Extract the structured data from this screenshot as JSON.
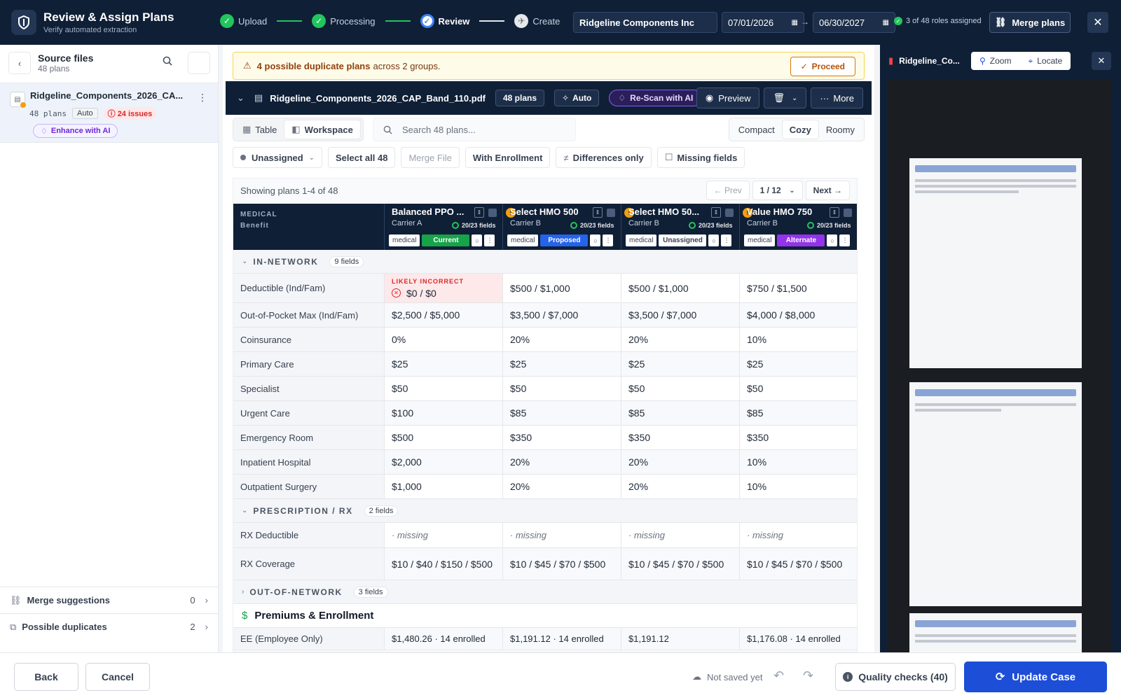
{
  "header": {
    "title": "Review & Assign Plans",
    "subtitle": "Verify automated extraction",
    "steps": [
      {
        "label": "Upload",
        "state": "done"
      },
      {
        "label": "Processing",
        "state": "done"
      },
      {
        "label": "Review",
        "state": "active"
      },
      {
        "label": "Create",
        "state": "todo"
      }
    ],
    "company": "Ridgeline Components Inc",
    "start_date": "07/01/2026",
    "end_date": "06/30/2027",
    "roles_status": "3 of 48 roles assigned",
    "merge_label": "Merge plans"
  },
  "sidebar": {
    "title": "Source files",
    "subtitle": "48 plans",
    "file": {
      "name": "Ridgeline_Components_2026_CA...",
      "plans": "48 plans",
      "mode": "Auto",
      "issues": "24 issues",
      "enhance": "Enhance with AI"
    },
    "merge_suggestions": {
      "label": "Merge suggestions",
      "count": "0"
    },
    "possible_duplicates": {
      "label": "Possible duplicates",
      "count": "2"
    }
  },
  "banner": {
    "bold": "4 possible duplicate plans",
    "rest": "across 2 groups.",
    "proceed": "Proceed"
  },
  "filebar": {
    "name": "Ridgeline_Components_2026_CAP_Band_110.pdf",
    "plans": "48 plans",
    "mode": "Auto",
    "rescan": "Re-Scan with AI",
    "preview": "Preview",
    "more": "More"
  },
  "toolbar": {
    "tab_table": "Table",
    "tab_workspace": "Workspace",
    "search_placeholder": "Search 48 plans...",
    "density": [
      "Compact",
      "Cozy",
      "Roomy"
    ],
    "status_filter": "Unassigned",
    "select_all": "Select all 48",
    "merge_file": "Merge File",
    "with_enrollment": "With Enrollment",
    "differences_only": "Differences only",
    "missing_fields": "Missing fields"
  },
  "table": {
    "showing": "Showing plans 1-4 of 48",
    "prev": "← Prev",
    "page": "1 / 12",
    "next": "Next →",
    "header_label_1": "MEDICAL",
    "header_label_2": "Benefit",
    "plans": [
      {
        "name": "Balanced PPO ...",
        "carrier": "Carrier A",
        "fields": "20/23 fields",
        "type": "medical",
        "role": "Current",
        "warn": false
      },
      {
        "name": "Select HMO 500",
        "carrier": "Carrier B",
        "fields": "20/23 fields",
        "type": "medical",
        "role": "Proposed",
        "warn": true
      },
      {
        "name": "Select HMO 50...",
        "carrier": "Carrier B",
        "fields": "20/23 fields",
        "type": "medical",
        "role": "Unassigned",
        "warn": true
      },
      {
        "name": "Value HMO 750",
        "carrier": "Carrier B",
        "fields": "20/23 fields",
        "type": "medical",
        "role": "Alternate",
        "warn": true
      }
    ],
    "warn_glyph": "!",
    "in_network": {
      "label": "IN-NETWORK",
      "count": "9 fields",
      "flag_label": "LIKELY INCORRECT",
      "rows": [
        {
          "label": "Deductible (Ind/Fam)",
          "values": [
            "$0 / $0",
            "$500 / $1,000",
            "$500 / $1,000",
            "$750 / $1,500"
          ]
        },
        {
          "label": "Out-of-Pocket Max (Ind/Fam)",
          "values": [
            "$2,500 / $5,000",
            "$3,500 / $7,000",
            "$3,500 / $7,000",
            "$4,000 / $8,000"
          ]
        },
        {
          "label": "Coinsurance",
          "values": [
            "0%",
            "20%",
            "20%",
            "10%"
          ]
        },
        {
          "label": "Primary Care",
          "values": [
            "$25",
            "$25",
            "$25",
            "$25"
          ]
        },
        {
          "label": "Specialist",
          "values": [
            "$50",
            "$50",
            "$50",
            "$50"
          ]
        },
        {
          "label": "Urgent Care",
          "values": [
            "$100",
            "$85",
            "$85",
            "$85"
          ]
        },
        {
          "label": "Emergency Room",
          "values": [
            "$500",
            "$350",
            "$350",
            "$350"
          ]
        },
        {
          "label": "Inpatient Hospital",
          "values": [
            "$2,000",
            "20%",
            "20%",
            "10%"
          ]
        },
        {
          "label": "Outpatient Surgery",
          "values": [
            "$1,000",
            "20%",
            "20%",
            "10%"
          ]
        }
      ]
    },
    "rx": {
      "label": "PRESCRIPTION / RX",
      "count": "2 fields",
      "rows": [
        {
          "label": "RX Deductible",
          "values": [
            "· missing",
            "· missing",
            "· missing",
            "· missing"
          ]
        },
        {
          "label": "RX Coverage",
          "values": [
            "$10 / $40 / $150 / $500",
            "$10 / $45 / $70 / $500",
            "$10 / $45 / $70 / $500",
            "$10 / $45 / $70 / $500"
          ]
        }
      ]
    },
    "oon": {
      "label": "OUT-OF-NETWORK",
      "count": "3 fields"
    },
    "premiums": {
      "label": "Premiums & Enrollment",
      "rows": [
        {
          "label": "EE (Employee Only)",
          "values": [
            "$1,480.26 · 14 enrolled",
            "$1,191.12 · 14 enrolled",
            "$1,191.12",
            "$1,176.08 · 14 enrolled"
          ]
        }
      ]
    }
  },
  "preview": {
    "name": "Ridgeline_Co...",
    "zoom": "Zoom",
    "locate": "Locate"
  },
  "footer": {
    "back": "Back",
    "cancel": "Cancel",
    "save_status": "Not saved yet",
    "quality": "Quality checks (40)",
    "update": "Update Case"
  }
}
